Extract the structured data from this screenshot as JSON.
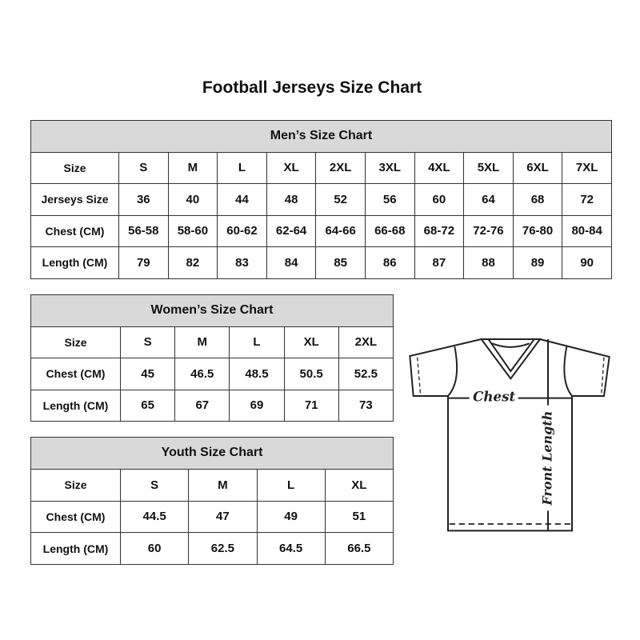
{
  "title": "Football Jerseys Size Chart",
  "men": {
    "heading": "Men’s Size Chart",
    "rows": [
      [
        "Size",
        "S",
        "M",
        "L",
        "XL",
        "2XL",
        "3XL",
        "4XL",
        "5XL",
        "6XL",
        "7XL"
      ],
      [
        "Jerseys Size",
        "36",
        "40",
        "44",
        "48",
        "52",
        "56",
        "60",
        "64",
        "68",
        "72"
      ],
      [
        "Chest (CM)",
        "56-58",
        "58-60",
        "60-62",
        "62-64",
        "64-66",
        "66-68",
        "68-72",
        "72-76",
        "76-80",
        "80-84"
      ],
      [
        "Length (CM)",
        "79",
        "82",
        "83",
        "84",
        "85",
        "86",
        "87",
        "88",
        "89",
        "90"
      ]
    ]
  },
  "women": {
    "heading": "Women’s Size Chart",
    "rows": [
      [
        "Size",
        "S",
        "M",
        "L",
        "XL",
        "2XL"
      ],
      [
        "Chest (CM)",
        "45",
        "46.5",
        "48.5",
        "50.5",
        "52.5"
      ],
      [
        "Length (CM)",
        "65",
        "67",
        "69",
        "71",
        "73"
      ]
    ]
  },
  "youth": {
    "heading": "Youth Size Chart",
    "rows": [
      [
        "Size",
        "S",
        "M",
        "L",
        "XL"
      ],
      [
        "Chest (CM)",
        "44.5",
        "47",
        "49",
        "51"
      ],
      [
        "Length (CM)",
        "60",
        "62.5",
        "64.5",
        "66.5"
      ]
    ]
  },
  "diagram": {
    "chest_label": "Chest",
    "length_label": "Front Length"
  },
  "colors": {
    "header_fill": "#d9d9d9",
    "border": "#333333"
  }
}
